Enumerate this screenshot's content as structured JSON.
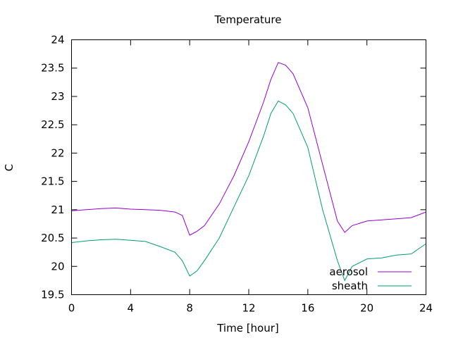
{
  "chart_data": {
    "type": "line",
    "title": "Temperature",
    "xlabel": "Time [hour]",
    "ylabel": "C",
    "xlim": [
      0,
      24
    ],
    "ylim": [
      19.5,
      24
    ],
    "xticks": [
      0,
      4,
      8,
      12,
      16,
      20,
      24
    ],
    "yticks": [
      19.5,
      20,
      20.5,
      21,
      21.5,
      22,
      22.5,
      23,
      23.5,
      24
    ],
    "grid": false,
    "legend_position": "bottom-right",
    "series": [
      {
        "name": "aerosol",
        "color": "#9400d3",
        "x": [
          0,
          1,
          2,
          3,
          4,
          5,
          6,
          7,
          7.5,
          8,
          8.5,
          9,
          10,
          11,
          12,
          13,
          13.5,
          14,
          14.5,
          15,
          16,
          17,
          18,
          18.5,
          19,
          20,
          21,
          22,
          23,
          24
        ],
        "y": [
          20.98,
          21.0,
          21.02,
          21.03,
          21.01,
          21.0,
          20.99,
          20.96,
          20.9,
          20.55,
          20.62,
          20.72,
          21.1,
          21.6,
          22.2,
          22.9,
          23.3,
          23.6,
          23.55,
          23.4,
          22.8,
          21.8,
          20.8,
          20.6,
          20.72,
          20.8,
          20.82,
          20.84,
          20.86,
          20.96
        ]
      },
      {
        "name": "sheath",
        "color": "#009e73",
        "x": [
          0,
          1,
          2,
          3,
          4,
          5,
          6,
          7,
          7.5,
          8,
          8.5,
          9,
          10,
          11,
          12,
          13,
          13.5,
          14,
          14.5,
          15,
          16,
          17,
          18,
          18.5,
          19,
          20,
          21,
          22,
          23,
          24
        ],
        "y": [
          20.42,
          20.45,
          20.47,
          20.48,
          20.46,
          20.44,
          20.35,
          20.25,
          20.1,
          19.83,
          19.92,
          20.1,
          20.5,
          21.05,
          21.6,
          22.3,
          22.7,
          22.92,
          22.85,
          22.7,
          22.1,
          21.0,
          20.1,
          19.75,
          20.0,
          20.13,
          20.15,
          20.2,
          20.22,
          20.4
        ]
      }
    ]
  }
}
